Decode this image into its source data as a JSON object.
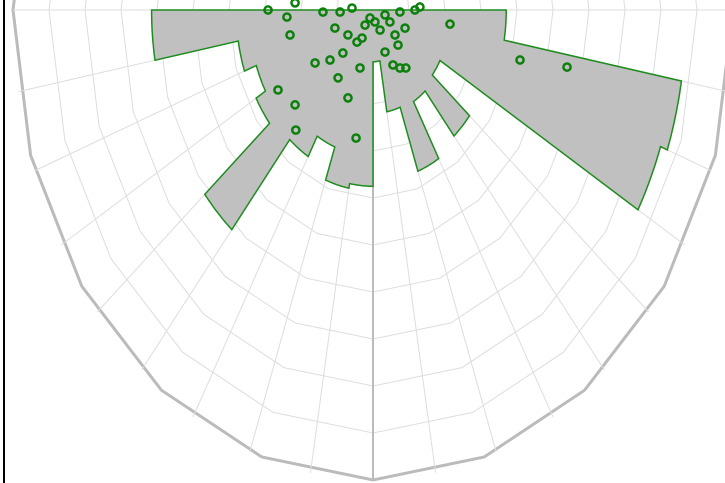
{
  "chart_data": {
    "type": "polar",
    "rlim": [
      0,
      20
    ],
    "rticks": [
      2,
      4,
      6,
      8,
      10,
      12,
      14,
      16,
      18,
      20
    ],
    "thetaticks": [
      -90,
      -80,
      -70,
      -60,
      -50,
      -40,
      -30,
      -20,
      -10,
      0,
      10,
      20,
      30,
      40,
      50,
      60,
      70,
      80,
      90
    ],
    "bins": [
      -90,
      -80,
      -70,
      -60,
      -50,
      -40,
      -30,
      -20,
      -10,
      0,
      10,
      20,
      30,
      40,
      50,
      60,
      70,
      80,
      90
    ],
    "radii": [
      12.3,
      7.6,
      6.9,
      7.5,
      12.2,
      7.2,
      6.2,
      7.7,
      7.5,
      2.2,
      4.4,
      7.3,
      4.5,
      7.0,
      4.3,
      17.0,
      17.4,
      7.4
    ],
    "fill": "#c0c0c0",
    "edge_color": "#1e8c1e",
    "points": {
      "color": "#0b800b",
      "theta": [
        -90,
        -94,
        -86.4,
        -88.2,
        -87.3,
        -94,
        -26,
        72.6,
        86.8,
        90,
        92.8,
        82,
        -77,
        -70,
        -52.7,
        -33,
        -27,
        24.6,
        49,
        66.6,
        -55,
        -48.3,
        -42.4,
        -16.3,
        -33.9,
        20.5,
        25.4,
        31.3,
        36.5,
        75.4,
        77.3,
        -57.2,
        -47,
        -20.4,
        -40,
        -9.8,
        12,
        61.5,
        -34.5,
        43
      ],
      "r": [
        5.83,
        4.34,
        4.79,
        2.78,
        1.83,
        1.17,
        0.38,
        0.7,
        1.5,
        2.33,
        2.61,
        4.32,
        4.73,
        2.25,
        1.75,
        1.63,
        1.34,
        0.94,
        1.62,
        1.94,
        3.93,
        3.2,
        2.48,
        2.57,
        3.48,
        1.91,
        2.59,
        2.89,
        3.07,
        8.44,
        11.05,
        6.28,
        5.92,
        3.99,
        6.67,
        5.53,
        0.52,
        1.07,
        0.78,
        2.04
      ]
    },
    "grid": true
  }
}
